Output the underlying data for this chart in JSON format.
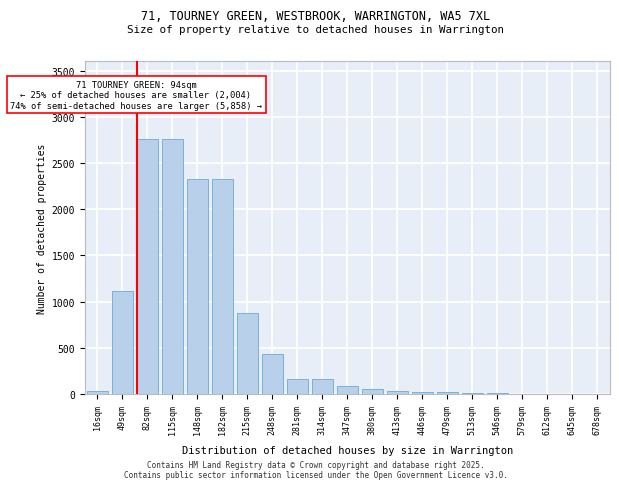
{
  "title_line1": "71, TOURNEY GREEN, WESTBROOK, WARRINGTON, WA5 7XL",
  "title_line2": "Size of property relative to detached houses in Warrington",
  "xlabel": "Distribution of detached houses by size in Warrington",
  "ylabel": "Number of detached properties",
  "categories": [
    "16sqm",
    "49sqm",
    "82sqm",
    "115sqm",
    "148sqm",
    "182sqm",
    "215sqm",
    "248sqm",
    "281sqm",
    "314sqm",
    "347sqm",
    "380sqm",
    "413sqm",
    "446sqm",
    "479sqm",
    "513sqm",
    "546sqm",
    "579sqm",
    "612sqm",
    "645sqm",
    "678sqm"
  ],
  "values": [
    30,
    1120,
    2760,
    2760,
    2330,
    2330,
    880,
    430,
    165,
    165,
    85,
    55,
    35,
    22,
    18,
    10,
    8,
    4,
    3,
    2,
    2
  ],
  "bar_color": "#b8d0ea",
  "bar_edge_color": "#6aaad4",
  "background_color": "#e8eef8",
  "grid_color": "#ffffff",
  "vline_color": "red",
  "annotation_title": "71 TOURNEY GREEN: 94sqm",
  "annotation_line1": "← 25% of detached houses are smaller (2,004)",
  "annotation_line2": "74% of semi-detached houses are larger (5,858) →",
  "footer_line1": "Contains HM Land Registry data © Crown copyright and database right 2025.",
  "footer_line2": "Contains public sector information licensed under the Open Government Licence v3.0.",
  "ylim": [
    0,
    3600
  ],
  "yticks": [
    0,
    500,
    1000,
    1500,
    2000,
    2500,
    3000,
    3500
  ]
}
